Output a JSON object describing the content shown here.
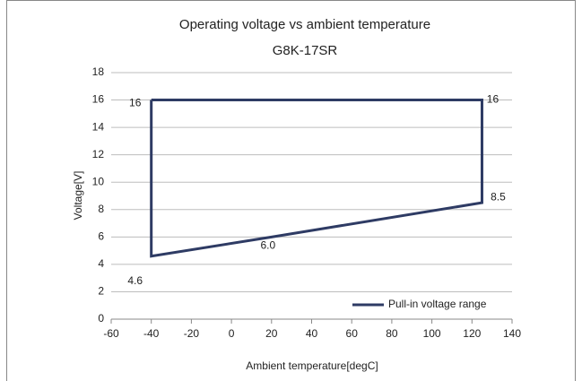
{
  "chart_data": {
    "type": "line",
    "title": "Operating voltage vs ambient temperature",
    "subtitle": "G8K-17SR",
    "x_label": "Ambient temperature[degC]",
    "y_label": "Voltage[V]",
    "series": [
      {
        "name": "Pull-in voltage range",
        "color": "#2e3b64",
        "x": [
          -40,
          125,
          125,
          20,
          -40,
          -40
        ],
        "values": [
          16,
          16,
          8.5,
          6.0,
          4.6,
          16
        ],
        "value_labels": [
          "16",
          "16",
          "8.5",
          "6.0",
          "4.6",
          null
        ]
      }
    ],
    "xlim": [
      -60,
      140
    ],
    "xticks": [
      -60,
      -40,
      -20,
      0,
      20,
      40,
      60,
      80,
      100,
      120,
      140
    ],
    "ylim": [
      0,
      18
    ],
    "yticks": [
      0,
      2,
      4,
      6,
      8,
      10,
      12,
      14,
      16,
      18
    ],
    "grid": true,
    "legend": "lower right"
  }
}
